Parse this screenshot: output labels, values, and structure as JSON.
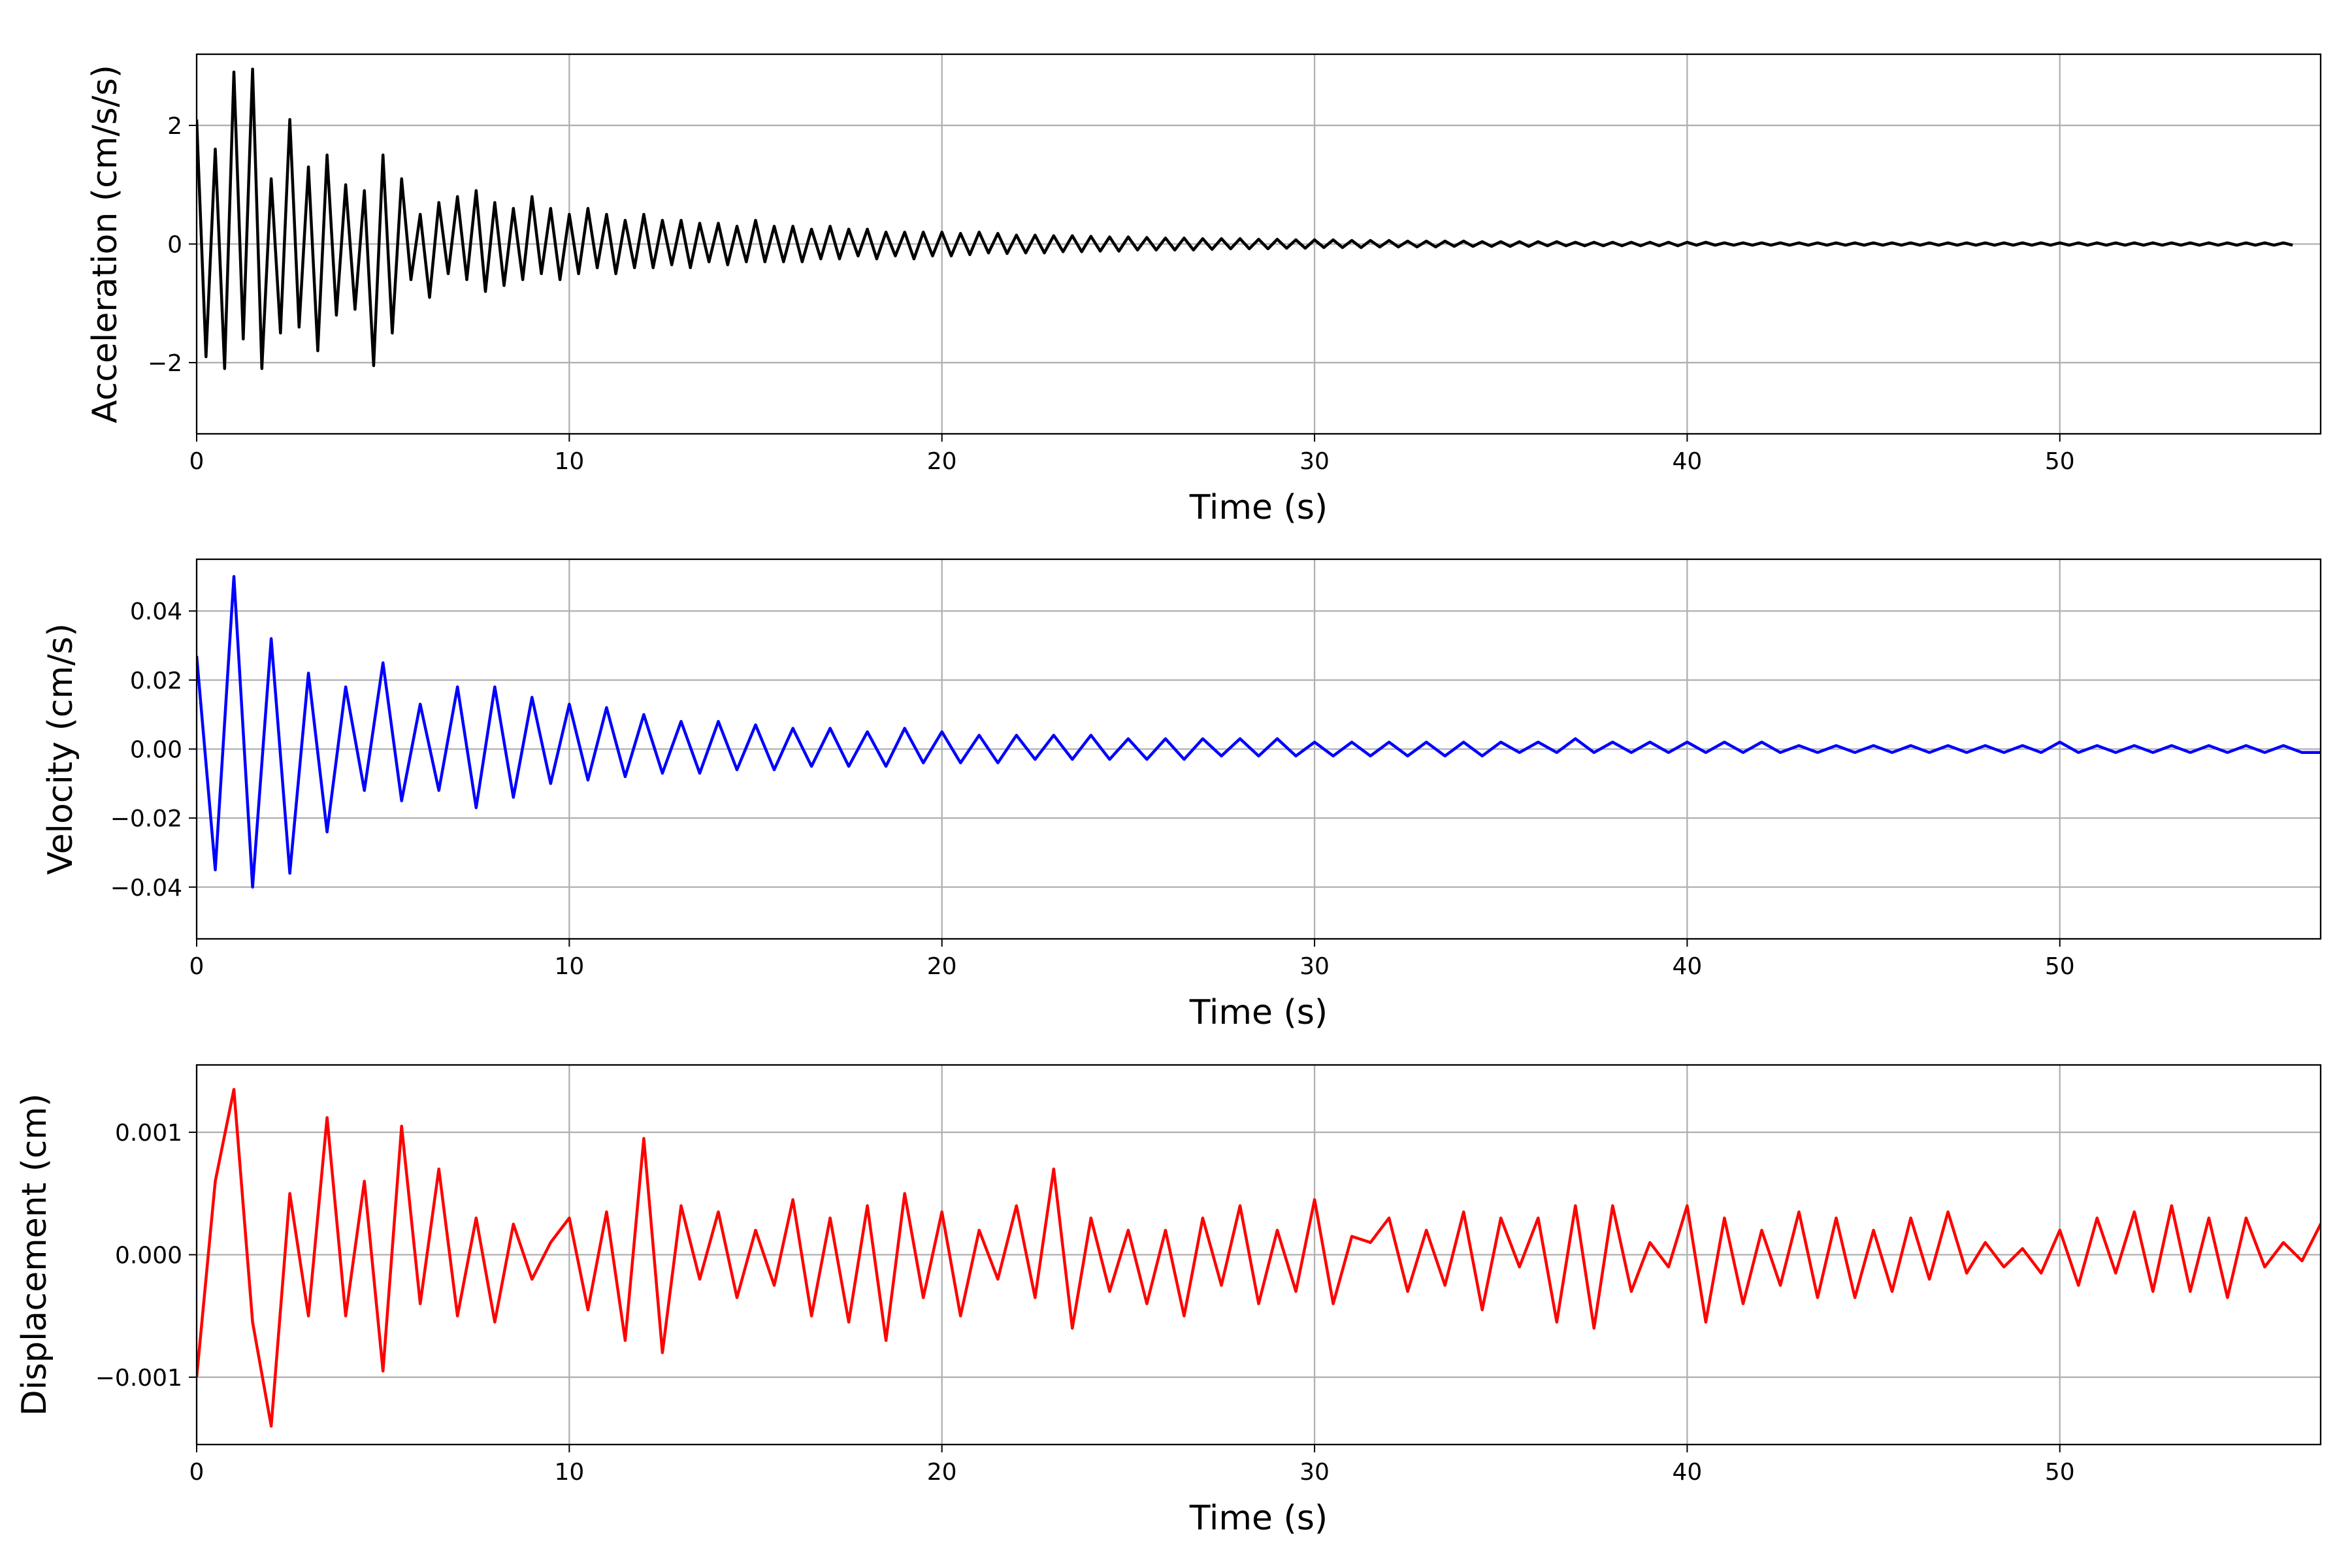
{
  "chart_data": [
    {
      "type": "line",
      "name": "acceleration",
      "ylabel": "Acceleration (cm/s/s)",
      "xlabel": "Time (s)",
      "color": "#000000",
      "xlim": [
        0,
        57
      ],
      "ylim": [
        -3.2,
        3.2
      ],
      "xticks": [
        0,
        10,
        20,
        30,
        40,
        50
      ],
      "yticks": [
        -2,
        0,
        2
      ],
      "ytick_labels": [
        "−2",
        "0",
        "2"
      ],
      "grid": true,
      "dt": 0.25,
      "values": [
        2.1,
        -1.9,
        1.6,
        -2.1,
        2.9,
        -1.6,
        2.95,
        -2.1,
        1.1,
        -1.5,
        2.1,
        -1.4,
        1.3,
        -1.8,
        1.5,
        -1.2,
        1.0,
        -1.1,
        0.9,
        -2.05,
        1.5,
        -1.5,
        1.1,
        -0.6,
        0.5,
        -0.9,
        0.7,
        -0.5,
        0.8,
        -0.6,
        0.9,
        -0.8,
        0.7,
        -0.7,
        0.6,
        -0.6,
        0.8,
        -0.5,
        0.6,
        -0.6,
        0.5,
        -0.5,
        0.6,
        -0.4,
        0.5,
        -0.5,
        0.4,
        -0.4,
        0.5,
        -0.4,
        0.4,
        -0.35,
        0.4,
        -0.4,
        0.35,
        -0.3,
        0.35,
        -0.35,
        0.3,
        -0.3,
        0.4,
        -0.3,
        0.3,
        -0.3,
        0.3,
        -0.3,
        0.25,
        -0.25,
        0.3,
        -0.25,
        0.25,
        -0.2,
        0.25,
        -0.25,
        0.2,
        -0.2,
        0.2,
        -0.25,
        0.2,
        -0.2,
        0.2,
        -0.2,
        0.18,
        -0.18,
        0.2,
        -0.15,
        0.18,
        -0.16,
        0.15,
        -0.15,
        0.15,
        -0.15,
        0.14,
        -0.13,
        0.14,
        -0.13,
        0.13,
        -0.12,
        0.12,
        -0.12,
        0.12,
        -0.1,
        0.11,
        -0.1,
        0.1,
        -0.1,
        0.1,
        -0.1,
        0.09,
        -0.09,
        0.09,
        -0.08,
        0.09,
        -0.08,
        0.08,
        -0.08,
        0.08,
        -0.07,
        0.07,
        -0.07,
        0.07,
        -0.06,
        0.07,
        -0.06,
        0.06,
        -0.06,
        0.06,
        -0.05,
        0.06,
        -0.05,
        0.05,
        -0.05,
        0.05,
        -0.05,
        0.05,
        -0.04,
        0.05,
        -0.04,
        0.04,
        -0.04,
        0.04,
        -0.04,
        0.04,
        -0.04,
        0.04,
        -0.03,
        0.04,
        -0.03,
        0.03,
        -0.03,
        0.03,
        -0.03,
        0.03,
        -0.03,
        0.03,
        -0.03,
        0.03,
        -0.03,
        0.03,
        -0.03,
        0.03,
        -0.02,
        0.03,
        -0.02,
        0.02,
        -0.02,
        0.02,
        -0.02,
        0.02,
        -0.02,
        0.02,
        -0.02,
        0.02,
        -0.02,
        0.02,
        -0.02,
        0.02,
        -0.02,
        0.02,
        -0.02,
        0.02,
        -0.02,
        0.02,
        -0.02,
        0.02,
        -0.02,
        0.02,
        -0.02,
        0.02,
        -0.02,
        0.02,
        -0.02,
        0.02,
        -0.02,
        0.02,
        -0.02,
        0.02,
        -0.02,
        0.02,
        -0.02,
        0.02,
        -0.02,
        0.02,
        -0.02,
        0.02,
        -0.02,
        0.02,
        -0.02,
        0.02,
        -0.02,
        0.02,
        -0.02,
        0.02,
        -0.02,
        0.02,
        -0.02,
        0.02,
        -0.02,
        0.02,
        -0.02,
        0.02,
        -0.02,
        0.02,
        -0.02,
        0.02,
        -0.02
      ]
    },
    {
      "type": "line",
      "name": "velocity",
      "ylabel": "Velocity (cm/s)",
      "xlabel": "Time (s)",
      "color": "#0000ff",
      "xlim": [
        0,
        57
      ],
      "ylim": [
        -0.055,
        0.055
      ],
      "xticks": [
        0,
        10,
        20,
        30,
        40,
        50
      ],
      "yticks": [
        -0.04,
        -0.02,
        0.0,
        0.02,
        0.04
      ],
      "ytick_labels": [
        "−0.04",
        "−0.02",
        "0.00",
        "0.02",
        "0.04"
      ],
      "grid": true,
      "dt": 0.5,
      "values": [
        0.027,
        -0.035,
        0.05,
        -0.04,
        0.032,
        -0.036,
        0.022,
        -0.024,
        0.018,
        -0.012,
        0.025,
        -0.015,
        0.013,
        -0.012,
        0.018,
        -0.017,
        0.018,
        -0.014,
        0.015,
        -0.01,
        0.013,
        -0.009,
        0.012,
        -0.008,
        0.01,
        -0.007,
        0.008,
        -0.007,
        0.008,
        -0.006,
        0.007,
        -0.006,
        0.006,
        -0.005,
        0.006,
        -0.005,
        0.005,
        -0.005,
        0.006,
        -0.004,
        0.005,
        -0.004,
        0.004,
        -0.004,
        0.004,
        -0.003,
        0.004,
        -0.003,
        0.004,
        -0.003,
        0.003,
        -0.003,
        0.003,
        -0.003,
        0.003,
        -0.002,
        0.003,
        -0.002,
        0.003,
        -0.002,
        0.002,
        -0.002,
        0.002,
        -0.002,
        0.002,
        -0.002,
        0.002,
        -0.002,
        0.002,
        -0.002,
        0.002,
        -0.001,
        0.002,
        -0.001,
        0.003,
        -0.001,
        0.002,
        -0.001,
        0.002,
        -0.001,
        0.002,
        -0.001,
        0.002,
        -0.001,
        0.002,
        -0.001,
        0.001,
        -0.001,
        0.001,
        -0.001,
        0.001,
        -0.001,
        0.001,
        -0.001,
        0.001,
        -0.001,
        0.001,
        -0.001,
        0.001,
        -0.001,
        0.002,
        -0.001,
        0.001,
        -0.001,
        0.001,
        -0.001,
        0.001,
        -0.001,
        0.001,
        -0.001,
        0.001,
        -0.001,
        0.001,
        -0.001,
        -0.001
      ]
    },
    {
      "type": "line",
      "name": "displacement",
      "ylabel": "Displacement (cm)",
      "xlabel": "Time (s)",
      "color": "#ff0000",
      "xlim": [
        0,
        57
      ],
      "ylim": [
        -0.00155,
        0.00155
      ],
      "xticks": [
        0,
        10,
        20,
        30,
        40,
        50
      ],
      "yticks": [
        -0.001,
        0.0,
        0.001
      ],
      "ytick_labels": [
        "−0.001",
        "0.000",
        "0.001"
      ],
      "grid": true,
      "dt": 0.5,
      "values": [
        -0.001,
        0.0006,
        0.00135,
        -0.00055,
        -0.0014,
        0.0005,
        -0.0005,
        0.00112,
        -0.0005,
        0.0006,
        -0.00095,
        0.00105,
        -0.0004,
        0.0007,
        -0.0005,
        0.0003,
        -0.00055,
        0.00025,
        -0.0002,
        0.0001,
        0.0003,
        -0.00045,
        0.00035,
        -0.0007,
        0.00095,
        -0.0008,
        0.0004,
        -0.0002,
        0.00035,
        -0.00035,
        0.0002,
        -0.00025,
        0.00045,
        -0.0005,
        0.0003,
        -0.00055,
        0.0004,
        -0.0007,
        0.0005,
        -0.00035,
        0.00035,
        -0.0005,
        0.0002,
        -0.0002,
        0.0004,
        -0.00035,
        0.0007,
        -0.0006,
        0.0003,
        -0.0003,
        0.0002,
        -0.0004,
        0.0002,
        -0.0005,
        0.0003,
        -0.00025,
        0.0004,
        -0.0004,
        0.0002,
        -0.0003,
        0.00045,
        -0.0004,
        0.00015,
        0.0001,
        0.0003,
        -0.0003,
        0.0002,
        -0.00025,
        0.00035,
        -0.00045,
        0.0003,
        -0.0001,
        0.0003,
        -0.00055,
        0.0004,
        -0.0006,
        0.0004,
        -0.0003,
        0.0001,
        -0.0001,
        0.0004,
        -0.00055,
        0.0003,
        -0.0004,
        0.0002,
        -0.00025,
        0.00035,
        -0.00035,
        0.0003,
        -0.00035,
        0.0002,
        -0.0003,
        0.0003,
        -0.0002,
        0.00035,
        -0.00015,
        0.0001,
        -0.0001,
        5e-05,
        -0.00015,
        0.0002,
        -0.00025,
        0.0003,
        -0.00015,
        0.00035,
        -0.0003,
        0.0004,
        -0.0003,
        0.0003,
        -0.00035,
        0.0003,
        -0.0001,
        0.0001,
        -5e-05,
        0.00025,
        -0.00055
      ]
    }
  ]
}
